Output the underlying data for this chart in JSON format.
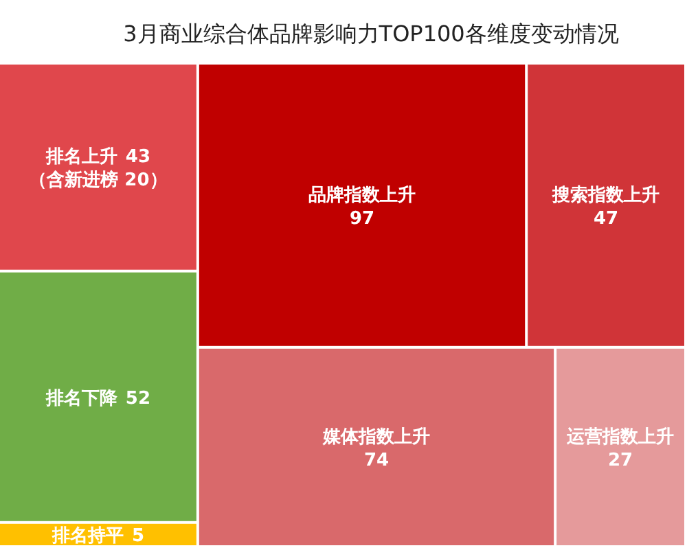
{
  "chart_data": {
    "type": "other",
    "title": "3月商业综合体品牌影响力TOP100各维度变动情况",
    "categories": [
      "排名上升",
      "排名下降",
      "排名持平",
      "品牌指数上升",
      "搜索指数上升",
      "媒体指数上升",
      "运营指数上升"
    ],
    "values": [
      43,
      52,
      5,
      97,
      47,
      74,
      27
    ],
    "colors": [
      "#e0474c",
      "#70ad47",
      "#ffc000",
      "#c00000",
      "#d03438",
      "#d9696b",
      "#e59a9b"
    ],
    "data_labels": true,
    "annotations": [
      "（含新进榜 20）"
    ]
  }
}
